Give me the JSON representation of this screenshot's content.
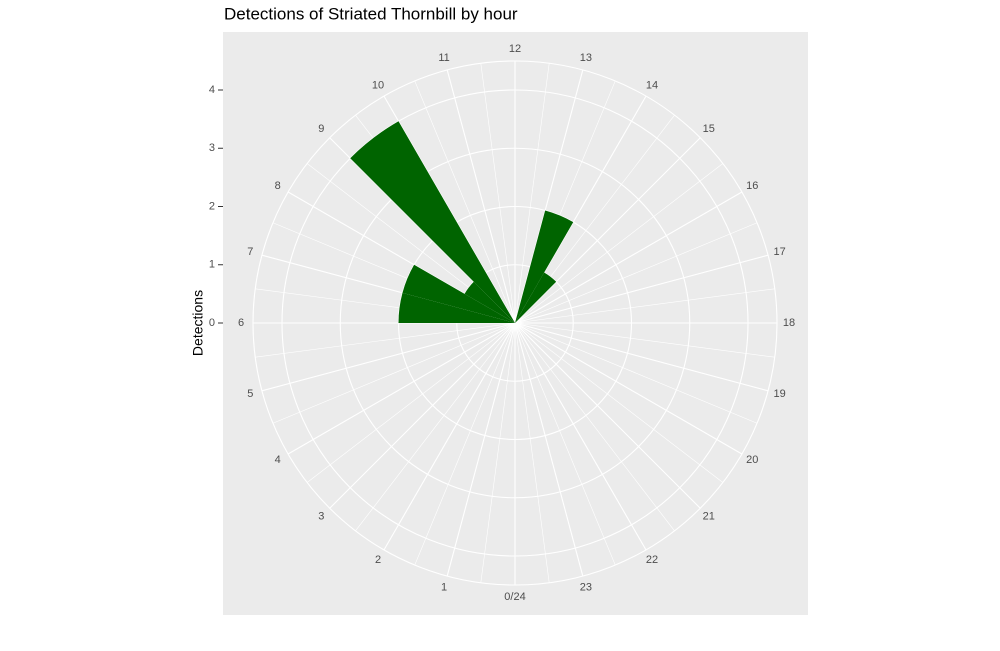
{
  "chart_data": {
    "type": "polar-bar",
    "title": "Detections of Striated Thornbill by hour",
    "y_label": "Detections",
    "x": [
      0,
      1,
      2,
      3,
      4,
      5,
      6,
      7,
      8,
      9,
      10,
      11,
      12,
      13,
      14,
      15,
      16,
      17,
      18,
      19,
      20,
      21,
      22,
      23
    ],
    "values": [
      0,
      0,
      0,
      0,
      0,
      0,
      2,
      2,
      1,
      4,
      0,
      0,
      0,
      2,
      1,
      0,
      0,
      0,
      0,
      0,
      0,
      0,
      0,
      0
    ],
    "color": "#006400",
    "xlim": [
      0,
      24
    ],
    "xticks": [
      {
        "value": 0,
        "label": "0/24"
      },
      1,
      2,
      3,
      4,
      5,
      6,
      7,
      8,
      9,
      10,
      11,
      12,
      13,
      14,
      15,
      16,
      17,
      18,
      19,
      20,
      21,
      22,
      23
    ],
    "ylim": [
      0,
      4
    ],
    "yticks": [
      0,
      1,
      2,
      3,
      4
    ],
    "grid": true
  }
}
